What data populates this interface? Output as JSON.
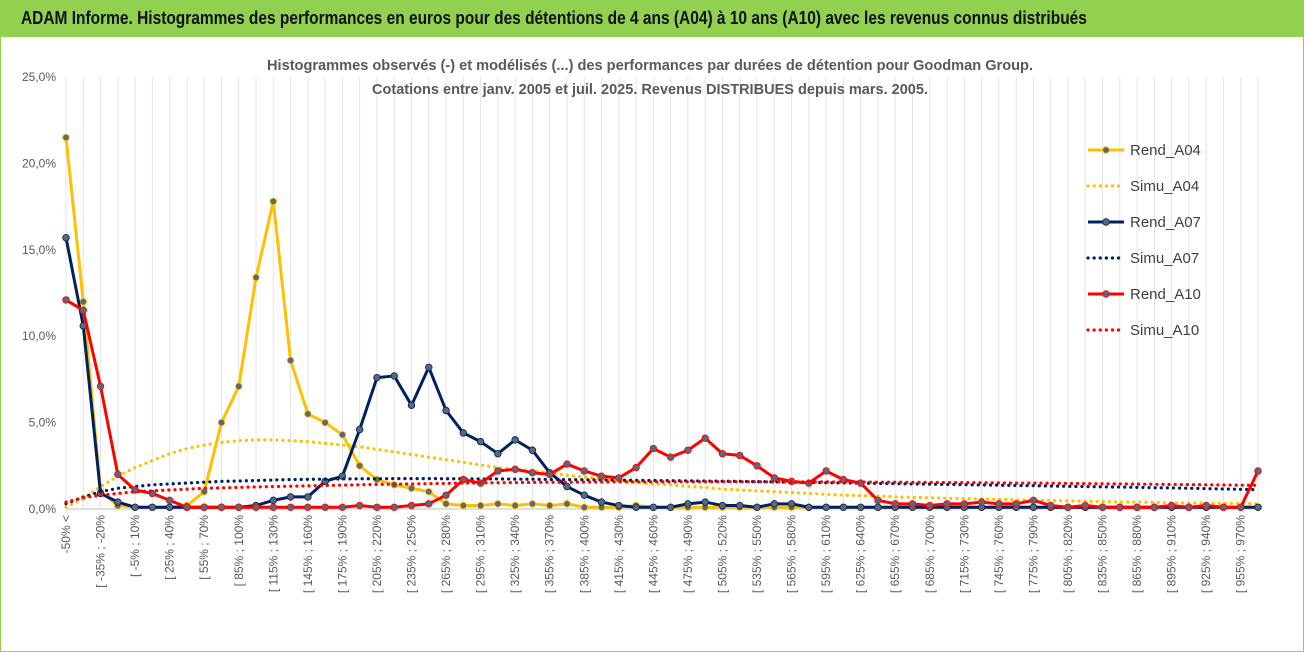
{
  "header": {
    "title": "ADAM Informe. Histogrammes des performances en euros pour des détentions de 4 ans (A04) à 10 ans (A10) avec les revenus connus distribués"
  },
  "chart_data": {
    "type": "line",
    "title": "Histogrammes observés (-) et modélisés (...) des performances par durées de détention pour Goodman Group.",
    "subtitle": "Cotations entre janv. 2005 et juil. 2025. Revenus DISTRIBUES depuis mars. 2005.",
    "xlabel": "",
    "ylabel": "",
    "ylim": [
      0,
      25
    ],
    "yticks": [
      "0,0%",
      "5,0%",
      "10,0%",
      "15,0%",
      "20,0%",
      "25,0%"
    ],
    "grid": "vertical",
    "legend_position": "right",
    "x_tick_labels": [
      "-50% <",
      "[ -35% ; -20%",
      "[ -5% ; 10%",
      "[ 25% ; 40%",
      "[ 55% ; 70%",
      "[ 85% ; 100%",
      "[ 115% ; 130%",
      "[ 145% ; 160%",
      "[ 175% ; 190%",
      "[ 205% ; 220%",
      "[ 235% ; 250%",
      "[ 265% ; 280%",
      "[ 295% ; 310%",
      "[ 325% ; 340%",
      "[ 355% ; 370%",
      "[ 385% ; 400%",
      "[ 415% ; 430%",
      "[ 445% ; 460%",
      "[ 475% ; 490%",
      "[ 505% ; 520%",
      "[ 535% ; 550%",
      "[ 565% ; 580%",
      "[ 595% ; 610%",
      "[ 625% ; 640%",
      "[ 655% ; 670%",
      "[ 685% ; 700%",
      "[ 715% ; 730%",
      "[ 745% ; 760%",
      "[ 775% ; 790%",
      "[ 805% ; 820%",
      "[ 835% ; 850%",
      "[ 865% ; 880%",
      "[ 895% ; 910%",
      "[ 925% ; 940%",
      "[ 955% ; 970%"
    ],
    "series": [
      {
        "name": "Rend_A04",
        "style": "solid",
        "color": "#ffc000",
        "values": [
          21.5,
          12.0,
          1.0,
          0.2,
          0.1,
          0.1,
          0.1,
          0.2,
          1.0,
          5.0,
          7.1,
          13.4,
          17.8,
          8.6,
          5.5,
          5.0,
          4.3,
          2.5,
          1.7,
          1.4,
          1.2,
          1.0,
          0.3,
          0.2,
          0.2,
          0.3,
          0.2,
          0.3,
          0.2,
          0.3,
          0.1,
          0.1,
          0.1,
          0.2,
          0.1,
          0.1,
          0.1,
          0.1,
          0.1,
          0.1,
          0.1,
          0.1,
          0.1,
          0.1,
          0.1,
          0.1,
          0.1,
          0.1,
          0.1,
          0.1,
          0.1,
          0.1,
          0.1,
          0.1,
          0.1,
          0.1,
          0.1,
          0.1,
          0.1,
          0.1,
          0.1,
          0.1,
          0.1,
          0.1,
          0.1,
          0.1,
          0.1,
          0.1,
          0.1,
          0.1
        ]
      },
      {
        "name": "Simu_A04",
        "style": "dotted",
        "color": "#ffc000",
        "values": [
          0.1,
          0.6,
          1.3,
          1.9,
          2.4,
          2.8,
          3.2,
          3.5,
          3.7,
          3.85,
          3.95,
          4.0,
          4.0,
          3.95,
          3.9,
          3.8,
          3.7,
          3.6,
          3.45,
          3.3,
          3.15,
          3.0,
          2.85,
          2.7,
          2.55,
          2.4,
          2.3,
          2.2,
          2.1,
          1.95,
          1.85,
          1.75,
          1.65,
          1.55,
          1.45,
          1.4,
          1.3,
          1.25,
          1.15,
          1.1,
          1.05,
          1.0,
          0.95,
          0.9,
          0.85,
          0.8,
          0.78,
          0.75,
          0.7,
          0.68,
          0.65,
          0.62,
          0.6,
          0.58,
          0.55,
          0.53,
          0.51,
          0.49,
          0.47,
          0.45,
          0.43,
          0.41,
          0.4,
          0.38,
          0.36,
          0.35,
          0.34,
          0.33,
          0.32,
          0.3
        ]
      },
      {
        "name": "Rend_A07",
        "style": "solid",
        "color": "#002060",
        "values": [
          15.7,
          10.6,
          0.9,
          0.4,
          0.1,
          0.1,
          0.1,
          0.1,
          0.1,
          0.1,
          0.1,
          0.2,
          0.5,
          0.7,
          0.7,
          1.6,
          1.9,
          4.6,
          7.6,
          7.7,
          6.0,
          8.2,
          5.7,
          4.4,
          3.9,
          3.2,
          4.0,
          3.4,
          2.1,
          1.3,
          0.8,
          0.4,
          0.2,
          0.1,
          0.1,
          0.1,
          0.3,
          0.4,
          0.2,
          0.2,
          0.1,
          0.3,
          0.3,
          0.1,
          0.1,
          0.1,
          0.1,
          0.1,
          0.1,
          0.1,
          0.1,
          0.1,
          0.1,
          0.1,
          0.1,
          0.1,
          0.1,
          0.1,
          0.1,
          0.1,
          0.1,
          0.1,
          0.1,
          0.1,
          0.1,
          0.1,
          0.1,
          0.1,
          0.1,
          0.1
        ]
      },
      {
        "name": "Simu_A07",
        "style": "dotted",
        "color": "#002060",
        "values": [
          0.3,
          0.7,
          1.0,
          1.2,
          1.3,
          1.4,
          1.45,
          1.5,
          1.55,
          1.6,
          1.62,
          1.65,
          1.68,
          1.7,
          1.72,
          1.73,
          1.74,
          1.75,
          1.75,
          1.76,
          1.76,
          1.76,
          1.75,
          1.75,
          1.74,
          1.74,
          1.73,
          1.72,
          1.71,
          1.7,
          1.69,
          1.68,
          1.67,
          1.66,
          1.65,
          1.64,
          1.63,
          1.62,
          1.61,
          1.6,
          1.58,
          1.57,
          1.55,
          1.54,
          1.52,
          1.51,
          1.5,
          1.48,
          1.47,
          1.45,
          1.44,
          1.42,
          1.41,
          1.39,
          1.38,
          1.36,
          1.35,
          1.33,
          1.31,
          1.3,
          1.28,
          1.27,
          1.25,
          1.23,
          1.22,
          1.2,
          1.18,
          1.16,
          1.14,
          1.12
        ]
      },
      {
        "name": "Rend_A10",
        "style": "solid",
        "color": "#ff0000",
        "values": [
          12.1,
          11.5,
          7.1,
          2.0,
          1.1,
          0.9,
          0.5,
          0.1,
          0.1,
          0.1,
          0.1,
          0.1,
          0.1,
          0.1,
          0.1,
          0.1,
          0.1,
          0.2,
          0.1,
          0.1,
          0.2,
          0.3,
          0.8,
          1.7,
          1.5,
          2.2,
          2.3,
          2.1,
          2.0,
          2.6,
          2.2,
          1.9,
          1.8,
          2.4,
          3.5,
          3.0,
          3.4,
          4.1,
          3.2,
          3.1,
          2.5,
          1.8,
          1.6,
          1.5,
          2.2,
          1.7,
          1.5,
          0.5,
          0.3,
          0.3,
          0.2,
          0.3,
          0.3,
          0.4,
          0.3,
          0.3,
          0.5,
          0.2,
          0.1,
          0.2,
          0.1,
          0.1,
          0.1,
          0.1,
          0.2,
          0.1,
          0.2,
          0.1,
          0.1,
          2.2
        ]
      },
      {
        "name": "Simu_A10",
        "style": "dotted",
        "color": "#ff0000",
        "values": [
          0.4,
          0.65,
          0.8,
          0.9,
          1.0,
          1.05,
          1.1,
          1.15,
          1.2,
          1.22,
          1.25,
          1.28,
          1.3,
          1.32,
          1.34,
          1.36,
          1.38,
          1.4,
          1.42,
          1.44,
          1.45,
          1.47,
          1.48,
          1.5,
          1.51,
          1.52,
          1.53,
          1.54,
          1.55,
          1.55,
          1.56,
          1.56,
          1.57,
          1.57,
          1.57,
          1.57,
          1.58,
          1.58,
          1.58,
          1.58,
          1.58,
          1.57,
          1.57,
          1.57,
          1.57,
          1.56,
          1.56,
          1.55,
          1.55,
          1.54,
          1.54,
          1.53,
          1.53,
          1.52,
          1.51,
          1.5,
          1.5,
          1.49,
          1.48,
          1.47,
          1.46,
          1.45,
          1.44,
          1.43,
          1.42,
          1.41,
          1.4,
          1.39,
          1.38,
          1.37
        ]
      }
    ]
  }
}
